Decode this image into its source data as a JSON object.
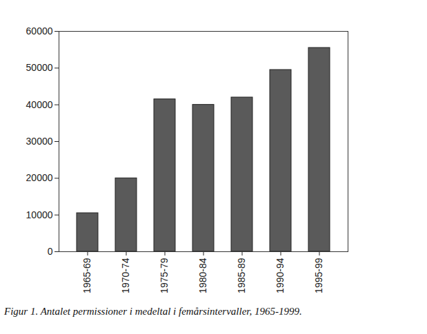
{
  "chart_data": {
    "type": "bar",
    "title": "Figur 1. Antalet permissioner i medeltal i femårsintervaller, 1965-1999.",
    "categories": [
      "1965-69",
      "1970-74",
      "1975-79",
      "1980-84",
      "1985-89",
      "1990-94",
      "1995-99"
    ],
    "values": [
      10500,
      20000,
      41500,
      40000,
      42000,
      49500,
      55500
    ],
    "color": "#5a5a5a",
    "ylim": [
      0,
      60000
    ],
    "yticks": [
      0,
      10000,
      20000,
      30000,
      40000,
      50000,
      60000
    ],
    "grid": false
  }
}
